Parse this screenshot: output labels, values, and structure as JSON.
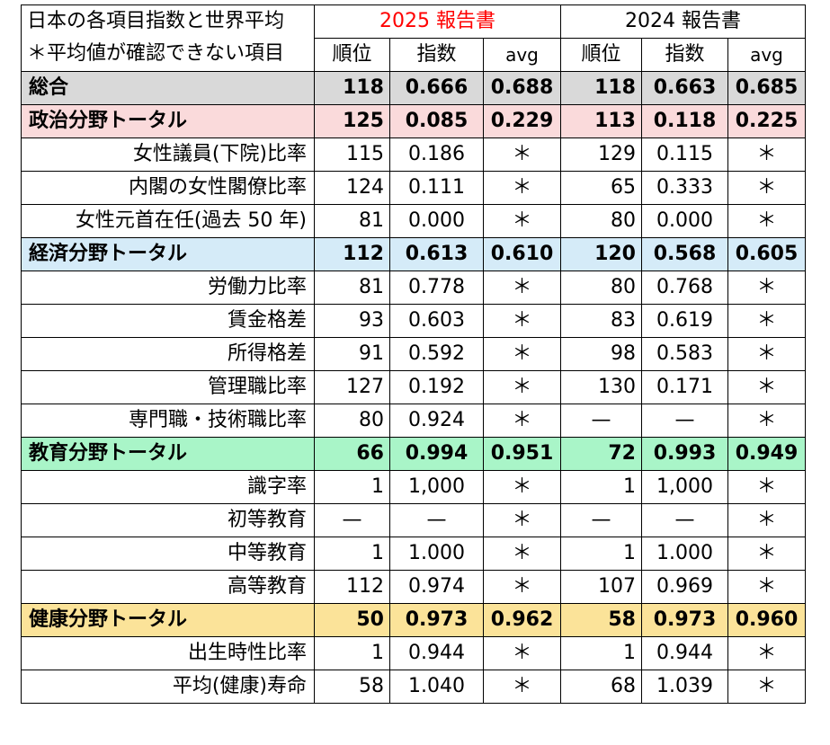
{
  "header": {
    "title_line1": "日本の各項目指数と世界平均",
    "title_line2": "＊平均値が確認できない項目",
    "report_2025": "2025 報告書",
    "report_2024": "2024 報告書",
    "col_rank": "順位",
    "col_index": "指数",
    "col_avg": "avg"
  },
  "rows": [
    {
      "label": "総合",
      "total": true,
      "cls": "r-overall",
      "r25": "118",
      "i25": "0.666",
      "a25": "0.688",
      "r24": "118",
      "i24": "0.663",
      "a24": "0.685"
    },
    {
      "label": "政治分野トータル",
      "total": true,
      "cls": "r-politics",
      "r25": "125",
      "i25": "0.085",
      "a25": "0.229",
      "r24": "113",
      "i24": "0.118",
      "a24": "0.225"
    },
    {
      "label": "女性議員(下院)比率",
      "total": false,
      "cls": "",
      "r25": "115",
      "i25": "0.186",
      "a25": "＊",
      "r24": "129",
      "i24": "0.115",
      "a24": "＊"
    },
    {
      "label": "内閣の女性閣僚比率",
      "total": false,
      "cls": "",
      "r25": "124",
      "i25": "0.111",
      "a25": "＊",
      "r24": "65",
      "i24": "0.333",
      "a24": "＊"
    },
    {
      "label": "女性元首在任(過去 50 年)",
      "total": false,
      "cls": "",
      "r25": "81",
      "i25": "0.000",
      "a25": "＊",
      "r24": "80",
      "i24": "0.000",
      "a24": "＊"
    },
    {
      "label": "経済分野トータル",
      "total": true,
      "cls": "r-economy",
      "r25": "112",
      "i25": "0.613",
      "a25": "0.610",
      "r24": "120",
      "i24": "0.568",
      "a24": "0.605"
    },
    {
      "label": "労働力比率",
      "total": false,
      "cls": "",
      "r25": "81",
      "i25": "0.778",
      "a25": "＊",
      "r24": "80",
      "i24": "0.768",
      "a24": "＊"
    },
    {
      "label": "賃金格差",
      "total": false,
      "cls": "",
      "r25": "93",
      "i25": "0.603",
      "a25": "＊",
      "r24": "83",
      "i24": "0.619",
      "a24": "＊"
    },
    {
      "label": "所得格差",
      "total": false,
      "cls": "",
      "r25": "91",
      "i25": "0.592",
      "a25": "＊",
      "r24": "98",
      "i24": "0.583",
      "a24": "＊"
    },
    {
      "label": "管理職比率",
      "total": false,
      "cls": "",
      "r25": "127",
      "i25": "0.192",
      "a25": "＊",
      "r24": "130",
      "i24": "0.171",
      "a24": "＊"
    },
    {
      "label": "専門職・技術職比率",
      "total": false,
      "cls": "",
      "r25": "80",
      "i25": "0.924",
      "a25": "＊",
      "r24": "—",
      "i24": "—",
      "a24": "＊"
    },
    {
      "label": "教育分野トータル",
      "total": true,
      "cls": "r-education",
      "r25": "66",
      "i25": "0.994",
      "a25": "0.951",
      "r24": "72",
      "i24": "0.993",
      "a24": "0.949"
    },
    {
      "label": "識字率",
      "total": false,
      "cls": "",
      "r25": "1",
      "i25": "1,000",
      "a25": "＊",
      "r24": "1",
      "i24": "1,000",
      "a24": "＊"
    },
    {
      "label": "初等教育",
      "total": false,
      "cls": "",
      "r25": "—",
      "i25": "—",
      "a25": "＊",
      "r24": "—",
      "i24": "—",
      "a24": "＊"
    },
    {
      "label": "中等教育",
      "total": false,
      "cls": "",
      "r25": "1",
      "i25": "1.000",
      "a25": "＊",
      "r24": "1",
      "i24": "1.000",
      "a24": "＊"
    },
    {
      "label": "高等教育",
      "total": false,
      "cls": "",
      "r25": "112",
      "i25": "0.974",
      "a25": "＊",
      "r24": "107",
      "i24": "0.969",
      "a24": "＊"
    },
    {
      "label": "健康分野トータル",
      "total": true,
      "cls": "r-health",
      "r25": "50",
      "i25": "0.973",
      "a25": "0.962",
      "r24": "58",
      "i24": "0.973",
      "a24": "0.960"
    },
    {
      "label": "出生時性比率",
      "total": false,
      "cls": "",
      "r25": "1",
      "i25": "0.944",
      "a25": "＊",
      "r24": "1",
      "i24": "0.944",
      "a24": "＊"
    },
    {
      "label": "平均(健康)寿命",
      "total": false,
      "cls": "",
      "r25": "58",
      "i25": "1.040",
      "a25": "＊",
      "r24": "68",
      "i24": "1.039",
      "a24": "＊"
    }
  ]
}
